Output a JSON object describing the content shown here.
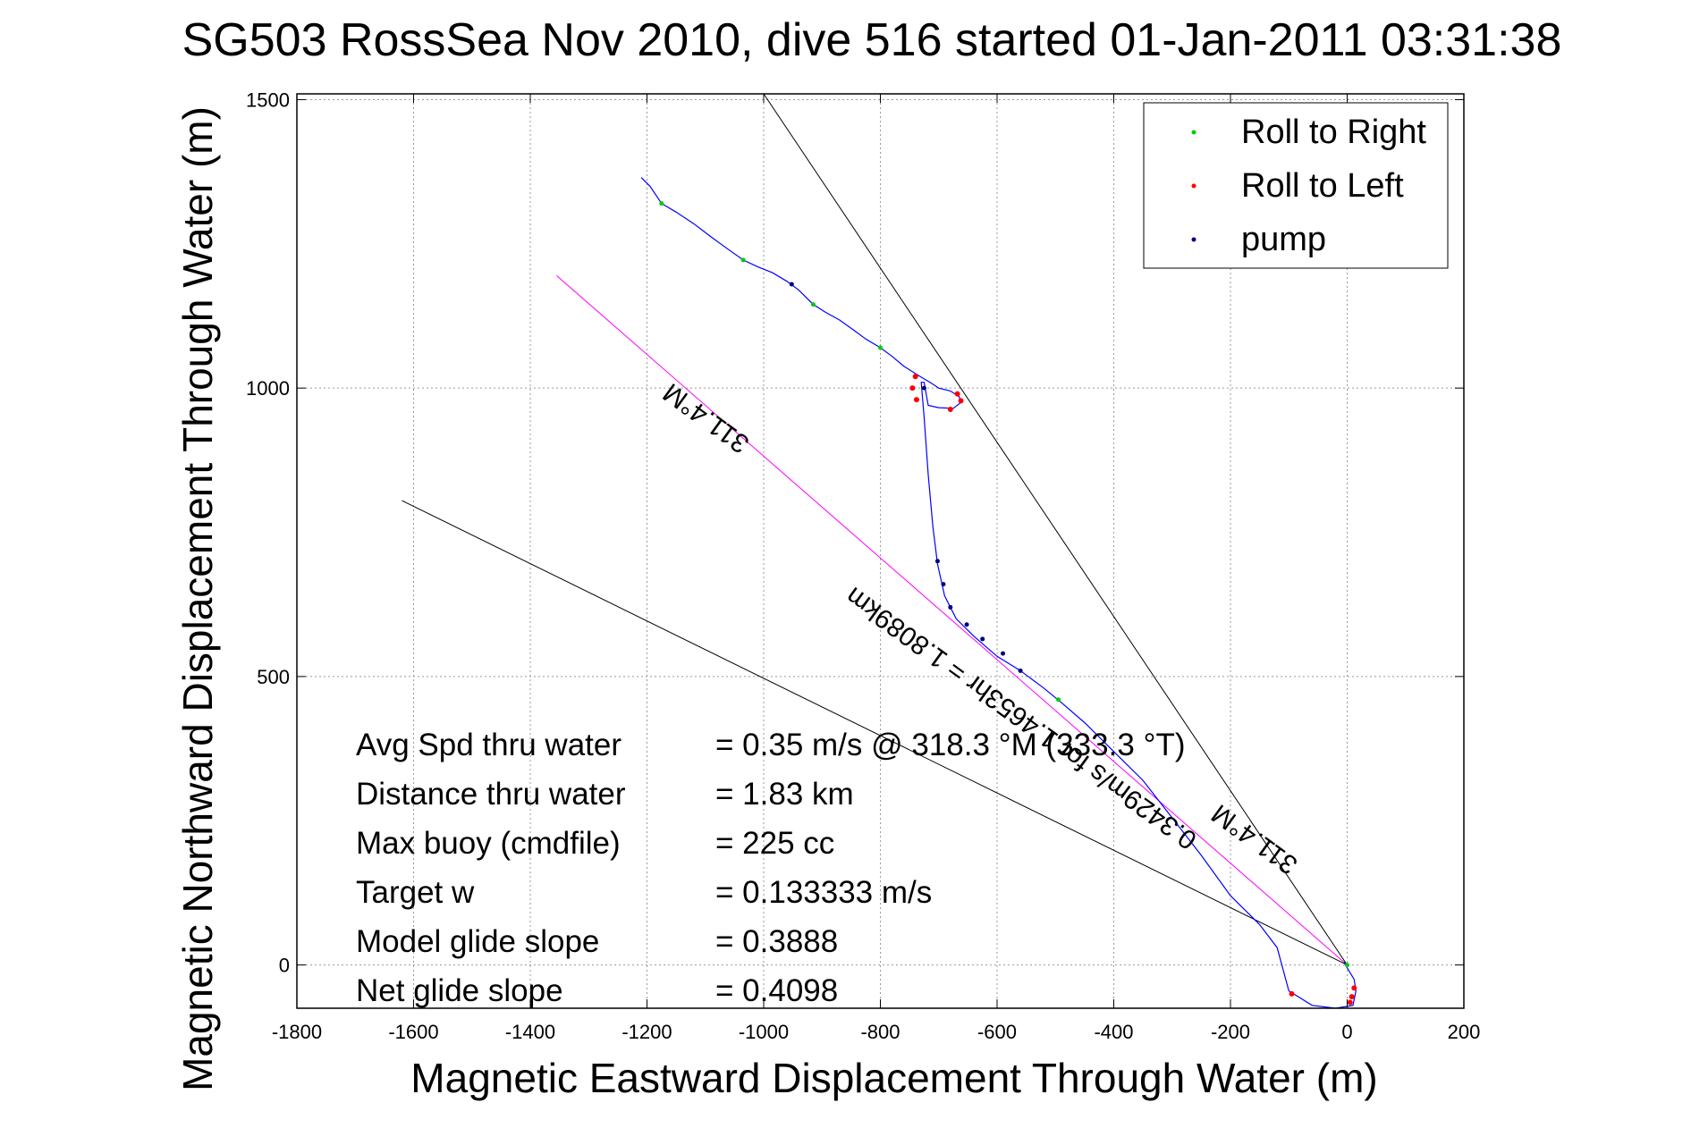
{
  "chart_data": {
    "type": "scatter",
    "title": "SG503 RossSea Nov 2010, dive 516 started 01-Jan-2011 03:31:38",
    "xlabel": "Magnetic Eastward Displacement Through Water (m)",
    "ylabel": "Magnetic Northward Displacement Through Water (m)",
    "xlim": [
      -1800,
      200
    ],
    "ylim": [
      -75,
      1510
    ],
    "xticks": [
      -1800,
      -1600,
      -1400,
      -1200,
      -1000,
      -800,
      -600,
      -400,
      -200,
      0,
      200
    ],
    "yticks": [
      0,
      500,
      1000,
      1500
    ],
    "x_tick_labels": [
      "-1800",
      "-1600",
      "-1400",
      "-1200",
      "-1000",
      "-800",
      "-600",
      "-400",
      "-200",
      "0",
      "200"
    ],
    "y_tick_labels": [
      "0",
      "500",
      "1000",
      "1500"
    ],
    "grid": true,
    "legend_position": "top-right",
    "legend": [
      {
        "label": "Roll to Right",
        "color": "#00cc00"
      },
      {
        "label": "Roll to Left",
        "color": "#ff0000"
      },
      {
        "label": "pump",
        "color": "#000080"
      }
    ],
    "track": {
      "color": "#0000ff",
      "points": [
        [
          -1210,
          1365
        ],
        [
          -1195,
          1350
        ],
        [
          -1175,
          1320
        ],
        [
          -1150,
          1305
        ],
        [
          -1120,
          1285
        ],
        [
          -1090,
          1262
        ],
        [
          -1060,
          1240
        ],
        [
          -1035,
          1222
        ],
        [
          -1010,
          1210
        ],
        [
          -985,
          1200
        ],
        [
          -960,
          1185
        ],
        [
          -940,
          1170
        ],
        [
          -915,
          1145
        ],
        [
          -895,
          1132
        ],
        [
          -870,
          1118
        ],
        [
          -845,
          1100
        ],
        [
          -825,
          1085
        ],
        [
          -800,
          1070
        ],
        [
          -780,
          1055
        ],
        [
          -760,
          1038
        ],
        [
          -735,
          1022
        ],
        [
          -715,
          1010
        ],
        [
          -700,
          1000
        ],
        [
          -680,
          995
        ],
        [
          -665,
          985
        ],
        [
          -662,
          975
        ],
        [
          -675,
          965
        ],
        [
          -700,
          966
        ],
        [
          -718,
          970
        ],
        [
          -725,
          1010
        ],
        [
          -730,
          1010
        ],
        [
          -728,
          985
        ],
        [
          -725,
          950
        ],
        [
          -718,
          850
        ],
        [
          -710,
          760
        ],
        [
          -702,
          695
        ],
        [
          -690,
          640
        ],
        [
          -670,
          600
        ],
        [
          -640,
          570
        ],
        [
          -600,
          535
        ],
        [
          -560,
          510
        ],
        [
          -520,
          480
        ],
        [
          -490,
          455
        ],
        [
          -450,
          420
        ],
        [
          -400,
          370
        ],
        [
          -350,
          320
        ],
        [
          -300,
          255
        ],
        [
          -250,
          190
        ],
        [
          -200,
          120
        ],
        [
          -150,
          70
        ],
        [
          -120,
          30
        ],
        [
          -100,
          -45
        ],
        [
          -60,
          -70
        ],
        [
          -20,
          -75
        ],
        [
          10,
          -70
        ],
        [
          15,
          -45
        ],
        [
          12,
          -25
        ],
        [
          0,
          -5
        ],
        [
          -5,
          5
        ]
      ]
    },
    "markers": {
      "roll_right": [
        [
          -1175,
          1320
        ],
        [
          -1035,
          1222
        ],
        [
          -915,
          1145
        ],
        [
          -800,
          1070
        ],
        [
          -495,
          460
        ],
        [
          0,
          0
        ]
      ],
      "roll_left": [
        [
          -740,
          1020
        ],
        [
          -745,
          1000
        ],
        [
          -738,
          980
        ],
        [
          -668,
          990
        ],
        [
          -662,
          978
        ],
        [
          -680,
          963
        ],
        [
          -95,
          -50
        ],
        [
          12,
          -40
        ],
        [
          8,
          -55
        ],
        [
          5,
          -65
        ]
      ],
      "pump": [
        [
          -952,
          1180
        ],
        [
          -725,
          1000
        ],
        [
          -702,
          700
        ],
        [
          -692,
          660
        ],
        [
          -680,
          620
        ],
        [
          -652,
          590
        ],
        [
          -625,
          565
        ],
        [
          -590,
          540
        ],
        [
          -560,
          510
        ]
      ]
    },
    "lines": {
      "course": {
        "color": "#ff00ff",
        "from": [
          0,
          0
        ],
        "to": [
          -1355,
          1195
        ]
      },
      "bound_upper": {
        "color": "#000000",
        "from": [
          0,
          0
        ],
        "to": [
          -1000,
          1510
        ]
      },
      "bound_lower": {
        "color": "#000000",
        "from": [
          0,
          0
        ],
        "to": [
          -1620,
          805
        ]
      }
    },
    "annotations": [
      {
        "text": "311.4°M",
        "x": -1090,
        "y": 960,
        "angle": 216
      },
      {
        "text": "0.3429m/s for 1.4653hr = 1.8089km",
        "x": -550,
        "y": 440,
        "angle": 216
      },
      {
        "text": "311.4°M",
        "x": -150,
        "y": 230,
        "angle": 216
      }
    ],
    "stats": [
      {
        "label": "Avg Spd thru water",
        "value": "=  0.35 m/s @ 318.3  °M (333.3 °T)"
      },
      {
        "label": "Distance thru water",
        "value": "=  1.83 km"
      },
      {
        "label": "Max buoy (cmdfile)",
        "value": "= 225 cc"
      },
      {
        "label": "Target w",
        "value": "= 0.133333 m/s"
      },
      {
        "label": "Model glide slope",
        "value": "= 0.3888"
      },
      {
        "label": "Net glide slope",
        "value": "= 0.4098"
      }
    ]
  }
}
